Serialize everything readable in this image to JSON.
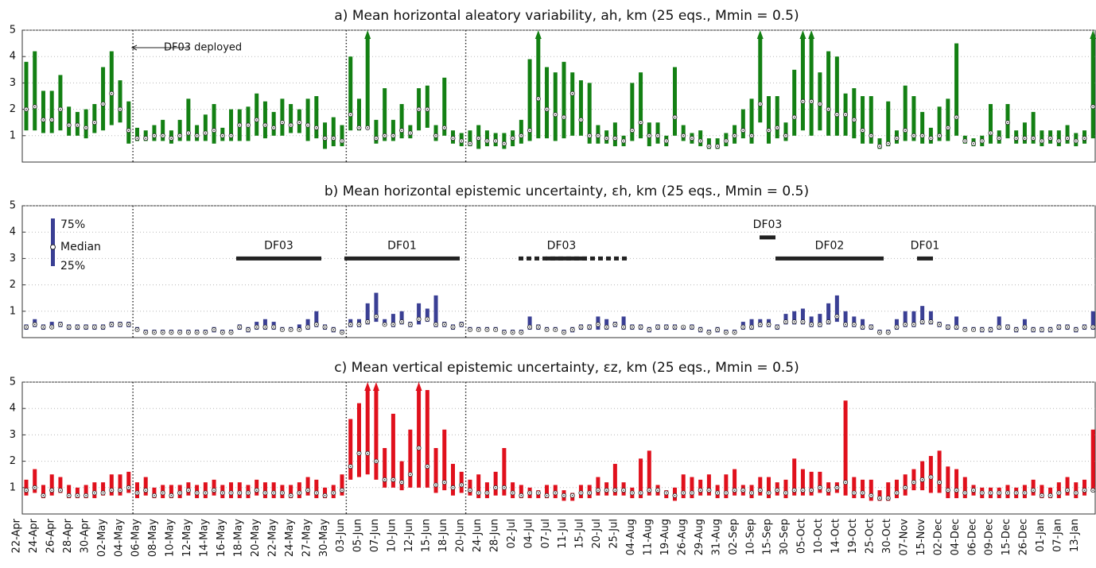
{
  "chart_data": [
    {
      "type": "range",
      "title": "a) Mean horizontal aleatory variability, ah, km (25 eqs., Mmin = 0.5)",
      "color": "#138013",
      "ylim": [
        0,
        5
      ],
      "yticks": [
        1,
        2,
        3,
        4,
        5
      ],
      "grid": true,
      "annotation": "DF03 deployed",
      "q25": [
        1.2,
        1.2,
        1.1,
        1.1,
        1.2,
        1.0,
        1.0,
        0.9,
        1.1,
        1.2,
        1.4,
        1.5,
        0.7,
        0.8,
        0.8,
        0.8,
        0.8,
        0.7,
        0.8,
        0.8,
        0.8,
        0.8,
        0.7,
        0.8,
        0.8,
        0.8,
        0.8,
        1.0,
        0.9,
        1.0,
        1.0,
        1.1,
        1.1,
        0.8,
        0.9,
        0.5,
        0.6,
        0.6,
        1.2,
        1.2,
        1.3,
        0.7,
        0.8,
        0.8,
        0.9,
        0.9,
        1.2,
        1.3,
        0.8,
        1.0,
        0.7,
        0.6,
        0.6,
        0.5,
        0.6,
        0.6,
        0.5,
        0.6,
        0.7,
        0.8,
        0.9,
        0.9,
        0.8,
        0.9,
        1.0,
        1.0,
        0.7,
        0.7,
        0.7,
        0.6,
        0.6,
        0.8,
        0.9,
        0.6,
        0.7,
        0.6,
        1.0,
        0.8,
        0.7,
        0.6,
        0.5,
        0.5,
        0.6,
        0.7,
        0.9,
        0.7,
        1.5,
        0.7,
        0.9,
        0.8,
        1.0,
        1.2,
        1.0,
        1.2,
        1.0,
        1.0,
        1.0,
        0.9,
        0.7,
        0.7,
        0.5,
        0.6,
        0.7,
        0.8,
        0.8,
        0.7,
        0.7,
        0.8,
        0.8,
        1.0,
        0.7,
        0.6,
        0.6,
        0.7,
        0.7,
        0.9,
        0.7,
        0.7,
        0.7,
        0.6,
        0.7,
        0.6,
        0.7,
        0.6,
        0.7,
        0.9
      ],
      "median": [
        2.0,
        2.1,
        1.6,
        1.6,
        2.0,
        1.4,
        1.4,
        1.3,
        1.5,
        2.2,
        2.6,
        2.0,
        1.2,
        0.9,
        0.9,
        1.0,
        1.0,
        0.9,
        1.0,
        1.1,
        1.0,
        1.1,
        1.2,
        1.0,
        1.0,
        1.4,
        1.4,
        1.6,
        1.4,
        1.3,
        1.5,
        1.4,
        1.5,
        1.4,
        1.3,
        0.9,
        0.9,
        0.8,
        1.8,
        1.3,
        1.3,
        0.9,
        1.0,
        1.0,
        1.2,
        1.1,
        2.0,
        2.0,
        1.0,
        1.3,
        0.9,
        0.8,
        0.7,
        0.9,
        0.8,
        0.8,
        0.7,
        0.9,
        1.0,
        1.2,
        2.4,
        2.0,
        1.8,
        1.7,
        2.6,
        1.6,
        1.0,
        1.0,
        0.9,
        0.9,
        0.8,
        1.2,
        1.5,
        1.0,
        1.0,
        0.8,
        1.7,
        1.0,
        0.9,
        0.8,
        0.6,
        0.6,
        0.8,
        1.0,
        1.2,
        1.0,
        2.2,
        1.2,
        1.3,
        1.0,
        1.7,
        2.3,
        2.3,
        2.2,
        2.0,
        1.8,
        1.8,
        1.6,
        1.2,
        1.0,
        0.6,
        0.7,
        0.9,
        1.2,
        1.0,
        1.0,
        0.9,
        1.0,
        1.3,
        1.7,
        0.8,
        0.7,
        0.8,
        1.1,
        0.9,
        1.5,
        0.9,
        0.9,
        0.9,
        0.8,
        0.9,
        0.8,
        0.9,
        0.8,
        0.9,
        2.1
      ],
      "q75": [
        3.8,
        4.2,
        2.7,
        2.7,
        3.3,
        2.1,
        1.9,
        2.0,
        2.2,
        3.6,
        4.2,
        3.1,
        2.3,
        1.3,
        1.2,
        1.4,
        1.6,
        1.2,
        1.6,
        2.4,
        1.4,
        1.8,
        2.2,
        1.3,
        2.0,
        2.0,
        2.1,
        2.6,
        2.3,
        1.9,
        2.4,
        2.2,
        2.0,
        2.4,
        2.5,
        1.5,
        1.7,
        1.4,
        4.0,
        2.4,
        5.6,
        1.6,
        2.8,
        1.6,
        2.2,
        1.4,
        2.8,
        2.9,
        1.4,
        3.2,
        1.2,
        1.1,
        1.2,
        1.4,
        1.2,
        1.1,
        1.1,
        1.2,
        1.6,
        3.9,
        5.6,
        3.6,
        3.4,
        3.8,
        3.4,
        3.1,
        3.0,
        1.4,
        1.2,
        1.5,
        1.0,
        3.0,
        3.4,
        1.5,
        1.5,
        1.0,
        3.6,
        1.4,
        1.1,
        1.2,
        0.9,
        0.9,
        1.1,
        1.4,
        2.0,
        2.4,
        5.6,
        2.5,
        2.5,
        1.5,
        3.5,
        5.6,
        5.6,
        3.4,
        4.2,
        4.0,
        2.6,
        2.8,
        2.5,
        2.5,
        0.9,
        2.3,
        1.2,
        2.9,
        2.5,
        1.9,
        1.3,
        2.1,
        2.4,
        4.5,
        1.0,
        0.9,
        1.0,
        2.2,
        1.2,
        2.2,
        1.2,
        1.5,
        1.9,
        1.2,
        1.2,
        1.2,
        1.4,
        1.1,
        1.2,
        5.6
      ]
    },
    {
      "type": "range",
      "title": "b) Mean horizontal epistemic uncertainty, εh, km (25 eqs., Mmin = 0.5)",
      "color": "#3a3f94",
      "ylim": [
        0,
        5
      ],
      "yticks": [
        1,
        2,
        3,
        4,
        5
      ],
      "grid": true,
      "legend": {
        "upper": "75%",
        "middle": "Median",
        "lower": "25%"
      },
      "periods": [
        {
          "label": "DF03",
          "y": 3
        },
        {
          "label": "DF01",
          "y": 3
        },
        {
          "label": "DF03",
          "y": 3
        },
        {
          "label": "DF03",
          "y": 3.8
        },
        {
          "label": "DF02",
          "y": 3
        },
        {
          "label": "DF01",
          "y": 3
        }
      ],
      "q25": [
        0.3,
        0.4,
        0.3,
        0.4,
        0.4,
        0.3,
        0.3,
        0.3,
        0.3,
        0.3,
        0.4,
        0.4,
        0.4,
        0.3,
        0.2,
        0.2,
        0.2,
        0.2,
        0.2,
        0.2,
        0.2,
        0.2,
        0.2,
        0.2,
        0.2,
        0.3,
        0.2,
        0.3,
        0.3,
        0.3,
        0.3,
        0.3,
        0.3,
        0.3,
        0.4,
        0.3,
        0.2,
        0.2,
        0.4,
        0.4,
        0.5,
        0.6,
        0.5,
        0.4,
        0.5,
        0.4,
        0.5,
        0.6,
        0.4,
        0.4,
        0.3,
        0.4,
        0.3,
        0.3,
        0.3,
        0.3,
        0.2,
        0.2,
        0.2,
        0.3,
        0.3,
        0.3,
        0.3,
        0.2,
        0.2,
        0.3,
        0.3,
        0.3,
        0.3,
        0.4,
        0.3,
        0.3,
        0.3,
        0.2,
        0.3,
        0.3,
        0.3,
        0.3,
        0.3,
        0.2,
        0.2,
        0.2,
        0.2,
        0.2,
        0.3,
        0.3,
        0.4,
        0.4,
        0.3,
        0.5,
        0.5,
        0.5,
        0.4,
        0.4,
        0.5,
        0.6,
        0.4,
        0.4,
        0.3,
        0.3,
        0.2,
        0.2,
        0.3,
        0.4,
        0.4,
        0.5,
        0.5,
        0.4,
        0.3,
        0.3,
        0.3,
        0.3,
        0.2,
        0.2,
        0.3,
        0.3,
        0.2,
        0.3,
        0.2,
        0.2,
        0.2,
        0.3,
        0.3,
        0.2,
        0.3,
        0.3
      ],
      "median": [
        0.4,
        0.5,
        0.4,
        0.4,
        0.5,
        0.4,
        0.4,
        0.4,
        0.4,
        0.4,
        0.5,
        0.5,
        0.5,
        0.3,
        0.2,
        0.2,
        0.2,
        0.2,
        0.2,
        0.2,
        0.2,
        0.2,
        0.3,
        0.2,
        0.2,
        0.4,
        0.3,
        0.4,
        0.4,
        0.4,
        0.3,
        0.3,
        0.3,
        0.4,
        0.5,
        0.4,
        0.3,
        0.2,
        0.5,
        0.5,
        0.6,
        0.8,
        0.5,
        0.5,
        0.6,
        0.5,
        0.7,
        0.7,
        0.5,
        0.5,
        0.4,
        0.5,
        0.3,
        0.3,
        0.3,
        0.3,
        0.2,
        0.2,
        0.2,
        0.4,
        0.4,
        0.3,
        0.3,
        0.2,
        0.3,
        0.4,
        0.4,
        0.5,
        0.4,
        0.5,
        0.4,
        0.4,
        0.4,
        0.3,
        0.4,
        0.4,
        0.4,
        0.4,
        0.4,
        0.3,
        0.2,
        0.3,
        0.2,
        0.2,
        0.4,
        0.4,
        0.5,
        0.5,
        0.4,
        0.6,
        0.6,
        0.6,
        0.5,
        0.5,
        0.6,
        0.8,
        0.5,
        0.5,
        0.4,
        0.4,
        0.2,
        0.2,
        0.4,
        0.5,
        0.5,
        0.6,
        0.6,
        0.5,
        0.4,
        0.4,
        0.3,
        0.3,
        0.3,
        0.3,
        0.4,
        0.4,
        0.3,
        0.4,
        0.3,
        0.3,
        0.3,
        0.4,
        0.4,
        0.3,
        0.4,
        0.4
      ],
      "q75": [
        0.5,
        0.7,
        0.5,
        0.6,
        0.6,
        0.5,
        0.5,
        0.5,
        0.5,
        0.5,
        0.6,
        0.6,
        0.6,
        0.4,
        0.3,
        0.3,
        0.3,
        0.3,
        0.3,
        0.3,
        0.3,
        0.3,
        0.4,
        0.3,
        0.3,
        0.5,
        0.4,
        0.6,
        0.7,
        0.6,
        0.4,
        0.4,
        0.5,
        0.7,
        1.0,
        0.5,
        0.4,
        0.3,
        0.7,
        0.7,
        1.3,
        1.7,
        0.7,
        0.9,
        1.0,
        0.6,
        1.3,
        1.1,
        1.6,
        0.6,
        0.5,
        0.6,
        0.4,
        0.4,
        0.4,
        0.4,
        0.3,
        0.3,
        0.3,
        0.8,
        0.5,
        0.4,
        0.4,
        0.3,
        0.4,
        0.5,
        0.5,
        0.8,
        0.7,
        0.6,
        0.8,
        0.5,
        0.5,
        0.4,
        0.5,
        0.5,
        0.5,
        0.4,
        0.5,
        0.4,
        0.3,
        0.4,
        0.3,
        0.3,
        0.6,
        0.7,
        0.7,
        0.7,
        0.5,
        0.9,
        1.0,
        1.1,
        0.8,
        0.9,
        1.3,
        1.6,
        1.0,
        0.8,
        0.7,
        0.5,
        0.3,
        0.3,
        0.7,
        1.0,
        1.0,
        1.2,
        1.0,
        0.6,
        0.5,
        0.8,
        0.4,
        0.4,
        0.4,
        0.4,
        0.8,
        0.5,
        0.4,
        0.7,
        0.4,
        0.4,
        0.4,
        0.5,
        0.5,
        0.4,
        0.5,
        1.0
      ]
    },
    {
      "type": "range",
      "title": "c) Mean vertical epistemic uncertainty, εz, km (25 eqs., Mmin = 0.5)",
      "color": "#e0101c",
      "ylim": [
        0,
        5
      ],
      "yticks": [
        1,
        2,
        3,
        4,
        5
      ],
      "grid": true,
      "categories": [
        "22-Apr",
        null,
        "24-Apr",
        null,
        "26-Apr",
        null,
        "28-Apr",
        null,
        "30-Apr",
        null,
        "02-May",
        null,
        "04-May",
        null,
        "06-May",
        null,
        "08-May",
        null,
        "10-May",
        null,
        "12-May",
        null,
        "14-May",
        null,
        "16-May",
        null,
        "18-May",
        null,
        "20-May",
        null,
        "22-May",
        null,
        "24-May",
        null,
        "27-May",
        null,
        "30-May",
        null,
        "03-Jun",
        null,
        "05-Jun",
        null,
        "07-Jun",
        null,
        "10-Jun",
        null,
        "12-Jun",
        null,
        "15-Jun",
        null,
        "18-Jun",
        null,
        "20-Jun",
        null,
        "24-Jun",
        null,
        "28-Jun",
        null,
        "02-Jul",
        null,
        "04-Jul",
        null,
        "07-Jul",
        null,
        "11-Jul",
        null,
        "15-Jul",
        null,
        "20-Jul",
        null,
        "25-Jul",
        null,
        "04-Aug",
        null,
        "11-Aug",
        null,
        "19-Aug",
        null,
        "26-Aug",
        null,
        "29-Aug",
        null,
        "31-Aug",
        null,
        "02-Sep",
        null,
        "10-Sep",
        null,
        "15-Sep",
        null,
        "30-Sep",
        null,
        "05-Oct",
        null,
        "10-Oct",
        null,
        "14-Oct",
        null,
        "19-Oct",
        null,
        "25-Oct",
        null,
        "30-Oct",
        null,
        "07-Nov",
        null,
        "15-Nov",
        null,
        "02-Dec",
        null,
        "04-Dec",
        null,
        "06-Dec",
        null,
        "09-Dec",
        null,
        "15-Dec",
        null,
        "26-Dec",
        null,
        "01-Jan",
        null,
        "07-Jan",
        null,
        "13-Jan",
        null
      ],
      "q25": [
        0.7,
        0.8,
        0.6,
        0.7,
        0.8,
        0.6,
        0.6,
        0.6,
        0.6,
        0.7,
        0.7,
        0.7,
        0.8,
        0.6,
        0.7,
        0.6,
        0.6,
        0.6,
        0.6,
        0.7,
        0.6,
        0.6,
        0.7,
        0.6,
        0.6,
        0.6,
        0.6,
        0.7,
        0.6,
        0.6,
        0.6,
        0.6,
        0.6,
        0.7,
        0.6,
        0.6,
        0.6,
        0.7,
        1.3,
        1.4,
        1.5,
        1.3,
        1.0,
        1.0,
        0.9,
        1.0,
        1.0,
        1.0,
        0.8,
        0.9,
        0.7,
        0.8,
        0.7,
        0.6,
        0.6,
        0.7,
        0.7,
        0.6,
        0.6,
        0.6,
        0.6,
        0.6,
        0.6,
        0.5,
        0.5,
        0.6,
        0.6,
        0.7,
        0.7,
        0.7,
        0.7,
        0.6,
        0.6,
        0.7,
        0.7,
        0.6,
        0.5,
        0.6,
        0.6,
        0.7,
        0.7,
        0.6,
        0.6,
        0.7,
        0.7,
        0.6,
        0.7,
        0.6,
        0.7,
        0.6,
        0.7,
        0.7,
        0.7,
        0.8,
        0.7,
        0.8,
        0.7,
        0.6,
        0.6,
        0.5,
        0.5,
        0.5,
        0.6,
        0.7,
        0.9,
        0.9,
        0.8,
        0.8,
        0.6,
        0.6,
        0.6,
        0.7,
        0.6,
        0.6,
        0.6,
        0.6,
        0.6,
        0.6,
        0.7,
        0.6,
        0.6,
        0.6,
        0.7,
        0.6,
        0.7,
        0.9
      ],
      "median": [
        0.9,
        1.0,
        0.7,
        0.9,
        0.9,
        0.7,
        0.7,
        0.7,
        0.8,
        0.8,
        0.9,
        0.9,
        1.0,
        0.8,
        0.9,
        0.7,
        0.8,
        0.7,
        0.8,
        0.9,
        0.8,
        0.8,
        0.9,
        0.8,
        0.8,
        0.8,
        0.8,
        0.9,
        0.8,
        0.8,
        0.8,
        0.7,
        0.8,
        0.9,
        0.8,
        0.7,
        0.8,
        0.9,
        1.8,
        2.3,
        2.3,
        2.0,
        1.3,
        1.3,
        1.2,
        1.5,
        2.5,
        1.8,
        1.1,
        1.2,
        1.0,
        1.1,
        0.9,
        0.8,
        0.8,
        1.0,
        1.0,
        0.8,
        0.7,
        0.8,
        0.8,
        0.7,
        0.8,
        0.7,
        0.7,
        0.8,
        0.8,
        0.9,
        0.9,
        0.9,
        0.9,
        0.8,
        0.8,
        0.9,
        0.9,
        0.8,
        0.7,
        0.8,
        0.8,
        0.9,
        0.9,
        0.8,
        0.8,
        0.9,
        0.9,
        0.8,
        0.9,
        0.8,
        0.9,
        0.8,
        0.9,
        0.9,
        0.9,
        1.0,
        0.9,
        1.0,
        1.2,
        0.8,
        0.8,
        0.7,
        0.6,
        0.6,
        0.8,
        1.0,
        1.2,
        1.3,
        1.4,
        1.2,
        0.9,
        0.9,
        0.8,
        0.9,
        0.8,
        0.8,
        0.8,
        0.8,
        0.8,
        0.8,
        0.9,
        0.7,
        0.7,
        0.8,
        0.9,
        0.8,
        0.9,
        0.9
      ],
      "q75": [
        1.3,
        1.7,
        1.1,
        1.5,
        1.4,
        1.1,
        1.0,
        1.1,
        1.2,
        1.2,
        1.5,
        1.5,
        1.6,
        1.2,
        1.4,
        1.0,
        1.1,
        1.1,
        1.1,
        1.2,
        1.1,
        1.2,
        1.3,
        1.1,
        1.2,
        1.2,
        1.1,
        1.3,
        1.2,
        1.2,
        1.1,
        1.1,
        1.2,
        1.4,
        1.3,
        1.0,
        1.1,
        1.5,
        3.6,
        4.2,
        5.6,
        5.6,
        2.5,
        3.8,
        2.0,
        3.2,
        5.6,
        4.7,
        2.5,
        3.2,
        1.9,
        1.6,
        1.3,
        1.5,
        1.2,
        1.6,
        2.5,
        1.2,
        1.1,
        1.0,
        0.9,
        1.1,
        1.1,
        0.9,
        0.8,
        1.1,
        1.1,
        1.4,
        1.2,
        1.9,
        1.2,
        1.0,
        2.1,
        2.4,
        1.1,
        0.9,
        1.0,
        1.5,
        1.4,
        1.3,
        1.5,
        1.1,
        1.5,
        1.7,
        1.1,
        1.1,
        1.4,
        1.4,
        1.2,
        1.3,
        2.1,
        1.7,
        1.6,
        1.6,
        1.2,
        1.2,
        4.3,
        1.4,
        1.3,
        1.3,
        0.9,
        1.2,
        1.3,
        1.5,
        1.7,
        2.0,
        2.2,
        2.4,
        1.8,
        1.7,
        1.4,
        1.1,
        1.0,
        1.0,
        1.0,
        1.1,
        1.0,
        1.1,
        1.3,
        1.1,
        1.0,
        1.2,
        1.4,
        1.2,
        1.3,
        3.2
      ]
    }
  ]
}
